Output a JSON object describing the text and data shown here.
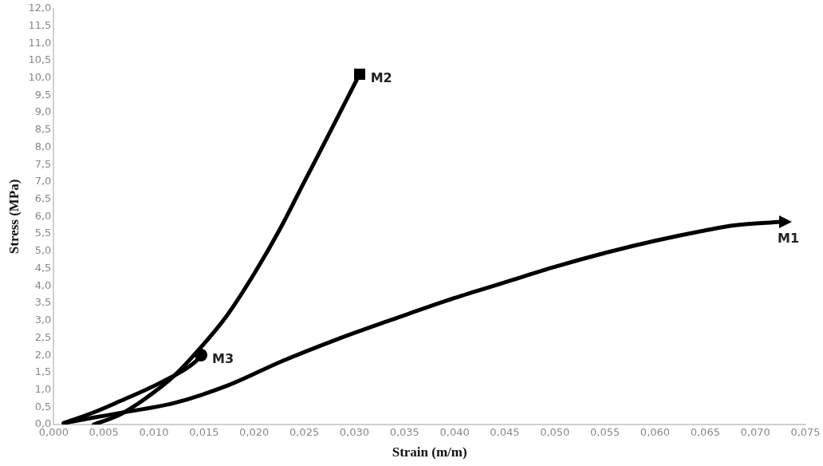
{
  "chart_data": {
    "type": "line",
    "xlabel": "Strain (m/m)",
    "ylabel": "Stress (MPa)",
    "xlim": [
      0,
      0.075
    ],
    "xticks": [
      {
        "value": 0,
        "label": "0,000"
      },
      {
        "value": 0.005,
        "label": "0,005"
      },
      {
        "value": 0.01,
        "label": "0,010"
      },
      {
        "value": 0.015,
        "label": "0,015"
      },
      {
        "value": 0.02,
        "label": "0,020"
      },
      {
        "value": 0.025,
        "label": "0,025"
      },
      {
        "value": 0.03,
        "label": "0,030"
      },
      {
        "value": 0.035,
        "label": "0,035"
      },
      {
        "value": 0.04,
        "label": "0,040"
      },
      {
        "value": 0.045,
        "label": "0,045"
      },
      {
        "value": 0.05,
        "label": "0,050"
      },
      {
        "value": 0.055,
        "label": "0,055"
      },
      {
        "value": 0.06,
        "label": "0,060"
      },
      {
        "value": 0.065,
        "label": "0,065"
      },
      {
        "value": 0.07,
        "label": "0,070"
      },
      {
        "value": 0.075,
        "label": "0,075"
      }
    ],
    "ylim": [
      0,
      12
    ],
    "yticks": [
      {
        "value": 0,
        "label": "0,0"
      },
      {
        "value": 0.5,
        "label": "0,5"
      },
      {
        "value": 1,
        "label": "1,0"
      },
      {
        "value": 1.5,
        "label": "1,5"
      },
      {
        "value": 2,
        "label": "2,0"
      },
      {
        "value": 2.5,
        "label": "2,5"
      },
      {
        "value": 3,
        "label": "3,0"
      },
      {
        "value": 3.5,
        "label": "3,5"
      },
      {
        "value": 4,
        "label": "4,0"
      },
      {
        "value": 4.5,
        "label": "4,5"
      },
      {
        "value": 5,
        "label": "5,0"
      },
      {
        "value": 5.5,
        "label": "5,5"
      },
      {
        "value": 6,
        "label": "6,0"
      },
      {
        "value": 6.5,
        "label": "6,5"
      },
      {
        "value": 7,
        "label": "7,0"
      },
      {
        "value": 7.5,
        "label": "7,5"
      },
      {
        "value": 8,
        "label": "8,0"
      },
      {
        "value": 8.5,
        "label": "8,5"
      },
      {
        "value": 9,
        "label": "9,0"
      },
      {
        "value": 9.5,
        "label": "9,5"
      },
      {
        "value": 10,
        "label": "10,0"
      },
      {
        "value": 10.5,
        "label": "10,5"
      },
      {
        "value": 11,
        "label": "11,0"
      },
      {
        "value": 11.5,
        "label": "11,5"
      },
      {
        "value": 12,
        "label": "12,0"
      }
    ],
    "grid": false,
    "line_style": "solid",
    "series": [
      {
        "name": "M1",
        "color": "#000000",
        "x": [
          0.001,
          0.004,
          0.007,
          0.012,
          0.0174,
          0.0228,
          0.0282,
          0.0335,
          0.04,
          0.045,
          0.05,
          0.055,
          0.06,
          0.065,
          0.068,
          0.0725
        ],
        "values": [
          0.04,
          0.2,
          0.35,
          0.62,
          1.13,
          1.83,
          2.45,
          3.0,
          3.65,
          4.1,
          4.55,
          4.95,
          5.3,
          5.6,
          5.75,
          5.85
        ]
      },
      {
        "name": "M2",
        "color": "#000000",
        "x": [
          0.004,
          0.0065,
          0.009,
          0.012,
          0.0146,
          0.0173,
          0.02,
          0.0225,
          0.025,
          0.0275,
          0.0305
        ],
        "values": [
          0,
          0.27,
          0.72,
          1.4,
          2.2,
          3.15,
          4.35,
          5.6,
          7.0,
          8.4,
          10.1
        ]
      },
      {
        "name": "M3",
        "color": "#000000",
        "x": [
          0.001,
          0.004,
          0.0065,
          0.0106,
          0.0142,
          0.0147
        ],
        "values": [
          0.04,
          0.35,
          0.66,
          1.2,
          1.83,
          2.0
        ]
      }
    ]
  }
}
